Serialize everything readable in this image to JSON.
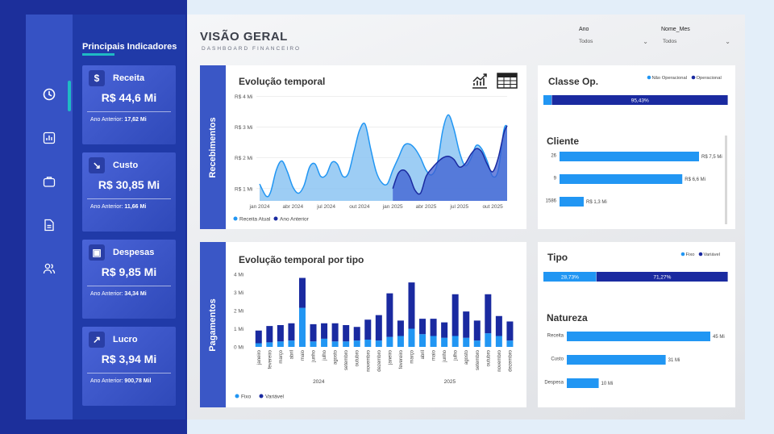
{
  "header": {
    "title": "VISÃO GERAL",
    "subtitle": "DASHBOARD FINANCEIRO"
  },
  "filters": [
    {
      "label": "Ano",
      "value": "Todos"
    },
    {
      "label": "Nome_Mes",
      "value": "Todos"
    }
  ],
  "nav": {
    "icons": [
      "clock-icon",
      "bar-chart-icon",
      "briefcase-icon",
      "document-icon",
      "users-icon"
    ]
  },
  "kpis": {
    "title": "Principais Indicadores",
    "prev_label": "Ano Anterior:",
    "items": [
      {
        "name": "Receita",
        "icon": "$",
        "value": "R$ 44,6 Mi",
        "previous": "17,62 Mi"
      },
      {
        "name": "Custo",
        "icon": "↘",
        "value": "R$ 30,85 Mi",
        "previous": "11,66 Mi"
      },
      {
        "name": "Despesas",
        "icon": "▣",
        "value": "R$ 9,85 Mi",
        "previous": "34,34 Mi"
      },
      {
        "name": "Lucro",
        "icon": "↗",
        "value": "R$ 3,94 Mi",
        "previous": "900,78 Mil"
      }
    ]
  },
  "sections": {
    "receipts": "Recebimentos",
    "payments": "Pagamentos"
  },
  "colors": {
    "accent": "#1fbac4",
    "light_blue": "#2196f3",
    "dark_blue": "#1a2aa0",
    "area_light": "#8cc4f2"
  },
  "chart_data": [
    {
      "id": "evolucao",
      "type": "area",
      "title": "Evolução temporal",
      "y_ticks": [
        "R$ 4 Mi",
        "R$ 3 Mi",
        "R$ 2 Mi",
        "R$ 1 Mi"
      ],
      "y_tick_values": [
        4,
        3,
        2,
        1
      ],
      "x_ticks": [
        "jan 2024",
        "abr 2024",
        "jul 2024",
        "out 2024",
        "jan 2025",
        "abr 2025",
        "jul 2025",
        "out 2025"
      ],
      "ylim": [
        0.6,
        4.2
      ],
      "legend": "bottom-left",
      "series": [
        {
          "name": "Receita Atual",
          "color": "#2196f3",
          "x": [
            0,
            0.6,
            1,
            1.5,
            2,
            2.5,
            3,
            3.5,
            4,
            4.5,
            5,
            5.5,
            6,
            6.5,
            7,
            7.5,
            8,
            8.5,
            9,
            9.5,
            10,
            10.5,
            11,
            11.5,
            12,
            12.5,
            13,
            13.5,
            14,
            14.5,
            15,
            15.5,
            16,
            16.5,
            17,
            17.5,
            18,
            18.5,
            19,
            19.5,
            20,
            20.5,
            21,
            21.5,
            22,
            22.3
          ],
          "y": [
            1.15,
            0.75,
            0.9,
            1.6,
            1.9,
            1.55,
            1.05,
            0.85,
            1.1,
            1.7,
            1.8,
            1.4,
            1.45,
            1.85,
            1.8,
            1.4,
            1.5,
            2.2,
            2.9,
            3.1,
            2.3,
            1.55,
            1.2,
            1.15,
            1.6,
            2.0,
            2.4,
            2.45,
            2.3,
            2.0,
            1.6,
            1.45,
            1.8,
            2.9,
            3.4,
            2.95,
            2.2,
            1.75,
            1.95,
            2.4,
            2.3,
            1.9,
            1.4,
            1.6,
            2.9,
            3.05
          ]
        },
        {
          "name": "Ano Anterior",
          "color": "#1a2aa0",
          "x": [
            12,
            12.5,
            13,
            13.5,
            14,
            14.5,
            15,
            15.5,
            16,
            16.5,
            17,
            17.5,
            18,
            18.5,
            19,
            19.5,
            20,
            20.5,
            21,
            21.5,
            22,
            22.3
          ],
          "y": [
            1.0,
            1.5,
            1.6,
            1.4,
            0.95,
            0.85,
            1.4,
            1.65,
            1.85,
            2.0,
            2.05,
            1.95,
            1.7,
            1.8,
            2.1,
            2.3,
            2.2,
            1.8,
            1.55,
            2.0,
            2.8,
            3.05
          ]
        }
      ]
    },
    {
      "id": "por-tipo",
      "type": "bar",
      "title": "Evolução temporal por tipo",
      "y_ticks": [
        "4 Mi",
        "3 Mi",
        "2 Mi",
        "1 Mi",
        "0 Mi"
      ],
      "y_tick_values": [
        4,
        3,
        2,
        1,
        0
      ],
      "ylim": [
        0,
        4
      ],
      "categories": [
        "janeiro",
        "fevereiro",
        "março",
        "abril",
        "maio",
        "junho",
        "julho",
        "agosto",
        "setembro",
        "outubro",
        "novembro",
        "dezembro",
        "janeiro",
        "fevereiro",
        "março",
        "abril",
        "maio",
        "junho",
        "julho",
        "agosto",
        "setembro",
        "outubro",
        "novembro",
        "dezembro"
      ],
      "groups": [
        {
          "label": "2024",
          "from": 0,
          "to": 11
        },
        {
          "label": "2025",
          "from": 12,
          "to": 23
        }
      ],
      "stacked": true,
      "legend": "bottom-left",
      "series": [
        {
          "name": "Fixo",
          "color": "#2196f3",
          "values": [
            0.2,
            0.25,
            0.3,
            0.35,
            2.15,
            0.3,
            0.45,
            0.3,
            0.3,
            0.35,
            0.4,
            0.35,
            0.55,
            0.6,
            1.0,
            0.7,
            0.6,
            0.5,
            0.6,
            0.5,
            0.35,
            0.75,
            0.6,
            0.35
          ]
        },
        {
          "name": "Variável",
          "color": "#1a2aa0",
          "values": [
            0.7,
            0.9,
            0.9,
            0.95,
            1.65,
            0.95,
            0.85,
            1.0,
            0.9,
            0.75,
            1.1,
            1.4,
            2.4,
            0.85,
            2.55,
            0.85,
            0.95,
            0.85,
            2.3,
            1.45,
            1.1,
            2.15,
            1.1,
            1.05
          ]
        }
      ]
    },
    {
      "id": "classe-op",
      "type": "bar",
      "title": "Classe Op.",
      "orientation": "horizontal-stacked-100",
      "legend": "top-right",
      "series": [
        {
          "name": "Não Operacional",
          "color": "#2196f3",
          "value": 4.57,
          "label": ""
        },
        {
          "name": "Operacional",
          "color": "#1a2aa0",
          "value": 95.43,
          "label": "95,43%"
        }
      ]
    },
    {
      "id": "cliente",
      "type": "bar",
      "title": "Cliente",
      "orientation": "horizontal",
      "categories": [
        "26",
        "9",
        "1586"
      ],
      "values": [
        7.5,
        6.6,
        1.3
      ],
      "value_labels": [
        "R$ 7,5 Mi",
        "R$ 6,6 Mi",
        "R$ 1,3 Mi"
      ],
      "color": "#2196f3"
    },
    {
      "id": "tipo",
      "type": "bar",
      "title": "Tipo",
      "orientation": "horizontal-stacked-100",
      "legend": "top-right",
      "series": [
        {
          "name": "Fixo",
          "color": "#2196f3",
          "value": 28.73,
          "label": "28,73%"
        },
        {
          "name": "Variável",
          "color": "#1a2aa0",
          "value": 71.27,
          "label": "71,27%"
        }
      ]
    },
    {
      "id": "natureza",
      "type": "bar",
      "title": "Natureza",
      "orientation": "horizontal",
      "categories": [
        "Receita",
        "Custo",
        "Despesa"
      ],
      "values": [
        45,
        31,
        10
      ],
      "value_labels": [
        "45 Mi",
        "31 Mi",
        "10 Mi"
      ],
      "color": "#2196f3"
    }
  ]
}
